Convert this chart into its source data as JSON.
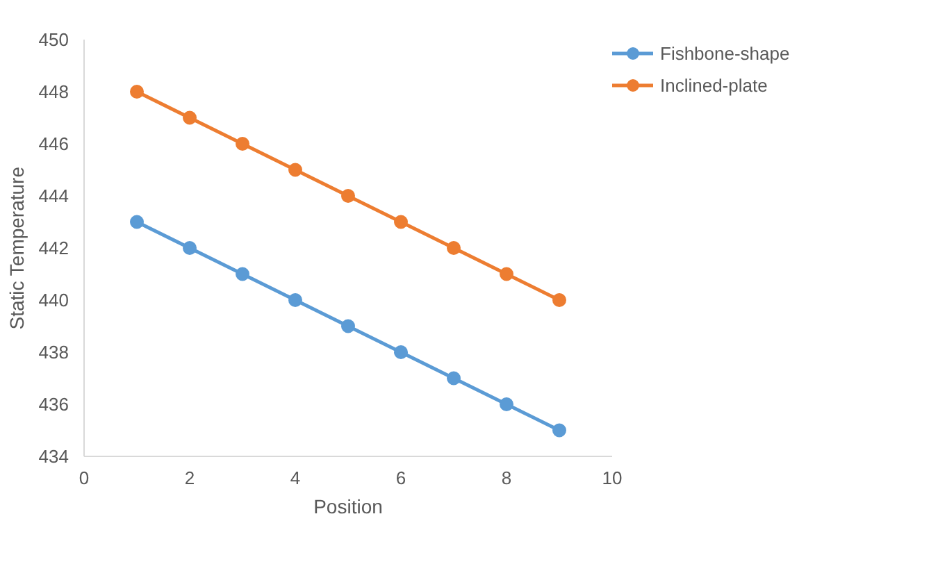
{
  "chart_data": {
    "type": "line",
    "xlabel": "Position",
    "ylabel": "Static Temperature",
    "x": [
      1,
      2,
      3,
      4,
      5,
      6,
      7,
      8,
      9
    ],
    "series": [
      {
        "name": "Fishbone-shape",
        "color": "#5b9bd5",
        "values": [
          443,
          442,
          441,
          440,
          439,
          438,
          437,
          436,
          435
        ]
      },
      {
        "name": "Inclined-plate",
        "color": "#ed7d31",
        "values": [
          448,
          447,
          446,
          445,
          444,
          443,
          442,
          441,
          440
        ]
      }
    ],
    "xlim": [
      0,
      10
    ],
    "xticks": [
      0,
      2,
      4,
      6,
      8,
      10
    ],
    "ylim": [
      434,
      450
    ],
    "yticks": [
      434,
      436,
      438,
      440,
      442,
      444,
      446,
      448,
      450
    ],
    "grid": false,
    "legend": "right",
    "marker": "circle",
    "line_style": "solid"
  }
}
